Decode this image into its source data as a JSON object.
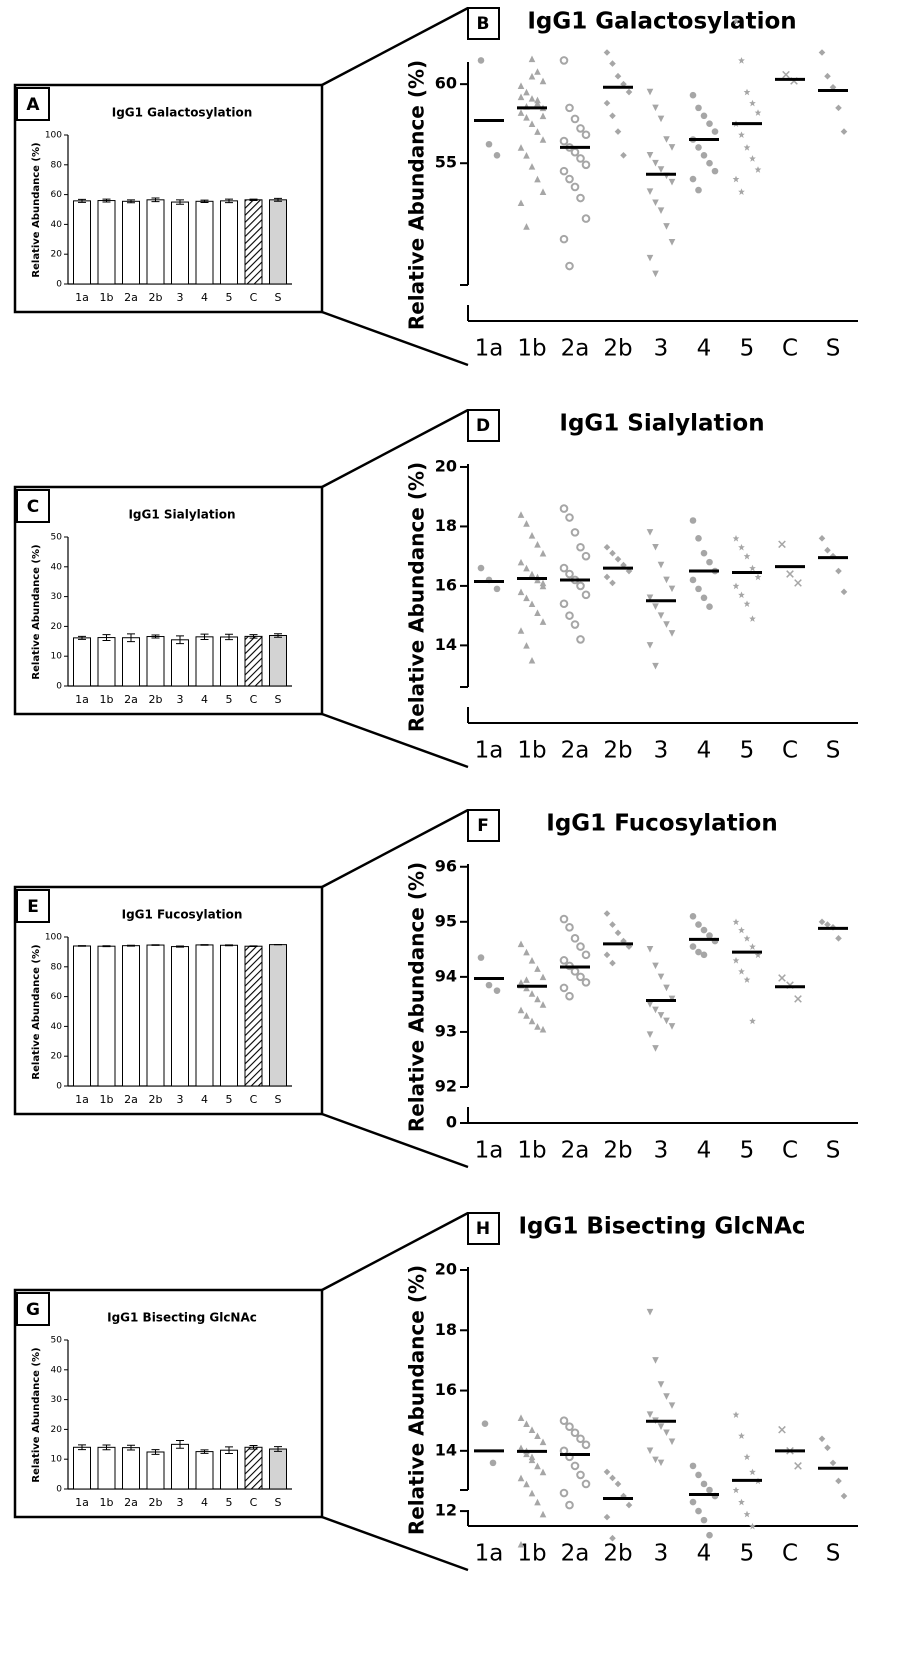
{
  "chart_data": [
    {
      "type": "bar",
      "label": "A",
      "title": "IgG1 Galactosylation",
      "y_label": "Relative Abundance (%)",
      "categories": [
        "1a",
        "1b",
        "2a",
        "2b",
        "3",
        "4",
        "5",
        "C",
        "S"
      ],
      "values": [
        55.8,
        56.0,
        55.5,
        56.5,
        55.0,
        55.5,
        55.8,
        56.5,
        56.5
      ],
      "errors": [
        1.0,
        1.0,
        1.0,
        1.2,
        1.5,
        0.8,
        1.2,
        0.5,
        1.0
      ],
      "fills": [
        "#ffffff",
        "#ffffff",
        "#ffffff",
        "#ffffff",
        "#ffffff",
        "#ffffff",
        "#ffffff",
        "hatch",
        "#d3d3d3"
      ],
      "ylim": [
        0,
        100
      ],
      "yticks": [
        0,
        20,
        40,
        60,
        80,
        100
      ]
    },
    {
      "type": "dot",
      "label": "B",
      "title": "IgG1 Galactosylation",
      "y_label": "Relative Abundance (%)",
      "categories": [
        "1a",
        "1b",
        "2a",
        "2b",
        "3",
        "4",
        "5",
        "C",
        "S"
      ],
      "markers": [
        "circle",
        "triangle",
        "circle-open",
        "diamond",
        "triangle-down",
        "circle",
        "star",
        "x",
        "diamond"
      ],
      "color": "#a6a6a6",
      "groups": [
        [
          61.5,
          56.2,
          55.5
        ],
        [
          59.2,
          58.6,
          61.6,
          60.8,
          60.2,
          59.9,
          59.5,
          59.1,
          58.8,
          58.5,
          58.2,
          57.9,
          57.5,
          57.0,
          56.5,
          56.0,
          55.5,
          54.8,
          54.0,
          53.2,
          52.5,
          51.0,
          60.5,
          59.0,
          58.0
        ],
        [
          61.5,
          58.5,
          57.8,
          57.2,
          56.8,
          56.4,
          56.0,
          55.7,
          55.3,
          54.9,
          54.5,
          54.0,
          53.5,
          52.8,
          51.5,
          50.2,
          48.5
        ],
        [
          62.0,
          61.3,
          60.5,
          60.0,
          59.5,
          58.8,
          58.0,
          57.0,
          55.5
        ],
        [
          59.5,
          58.5,
          57.8,
          56.5,
          56.0,
          55.5,
          55.0,
          54.6,
          54.2,
          53.8,
          53.2,
          52.5,
          52.0,
          51.0,
          50.0,
          49.0,
          48.0
        ],
        [
          59.3,
          58.5,
          58.0,
          57.5,
          57.0,
          56.5,
          56.0,
          55.5,
          55.0,
          54.5,
          54.0,
          53.3
        ],
        [
          64.0,
          61.5,
          59.5,
          58.8,
          58.2,
          57.5,
          56.8,
          56.0,
          55.3,
          54.6,
          54.0,
          53.2
        ],
        [
          60.6,
          60.2
        ],
        [
          62.0,
          60.5,
          59.8,
          58.5,
          57.0
        ]
      ],
      "means": [
        57.7,
        58.5,
        56.0,
        59.8,
        54.3,
        56.5,
        57.5,
        60.3,
        59.6
      ],
      "ylim": [
        47.3,
        61.4
      ],
      "yticks": [
        55,
        60
      ]
    },
    {
      "type": "bar",
      "label": "C",
      "title": "IgG1 Sialylation",
      "y_label": "Relative Abundance (%)",
      "categories": [
        "1a",
        "1b",
        "2a",
        "2b",
        "3",
        "4",
        "5",
        "C",
        "S"
      ],
      "values": [
        16.15,
        16.25,
        16.2,
        16.6,
        15.5,
        16.5,
        16.45,
        16.65,
        16.95
      ],
      "errors": [
        0.5,
        1.0,
        1.3,
        0.5,
        1.3,
        0.9,
        0.9,
        0.6,
        0.6
      ],
      "fills": [
        "#ffffff",
        "#ffffff",
        "#ffffff",
        "#ffffff",
        "#ffffff",
        "#ffffff",
        "#ffffff",
        "hatch",
        "#d3d3d3"
      ],
      "ylim": [
        0,
        50
      ],
      "yticks": [
        0,
        10,
        20,
        30,
        40,
        50
      ]
    },
    {
      "type": "dot",
      "label": "D",
      "title": "IgG1 Sialylation",
      "y_label": "Relative Abundance (%)",
      "categories": [
        "1a",
        "1b",
        "2a",
        "2b",
        "3",
        "4",
        "5",
        "C",
        "S"
      ],
      "markers": [
        "circle",
        "triangle",
        "circle-open",
        "diamond",
        "triangle-down",
        "circle",
        "star",
        "x",
        "diamond"
      ],
      "color": "#a6a6a6",
      "groups": [
        [
          16.6,
          16.2,
          15.9
        ],
        [
          18.4,
          18.1,
          17.7,
          17.4,
          17.1,
          16.8,
          16.6,
          16.4,
          16.2,
          16.0,
          15.8,
          15.6,
          15.4,
          15.1,
          14.8,
          14.5,
          14.0,
          13.5,
          16.3,
          16.1
        ],
        [
          18.6,
          18.3,
          17.8,
          17.3,
          17.0,
          16.6,
          16.4,
          16.2,
          16.0,
          15.7,
          15.4,
          15.0,
          14.7,
          14.2
        ],
        [
          17.3,
          17.1,
          16.9,
          16.7,
          16.5,
          16.3,
          16.1
        ],
        [
          17.8,
          17.3,
          16.7,
          16.2,
          15.9,
          15.6,
          15.3,
          15.0,
          14.7,
          14.4,
          14.0,
          13.3
        ],
        [
          18.2,
          17.6,
          17.1,
          16.8,
          16.5,
          16.2,
          15.9,
          15.6,
          15.3
        ],
        [
          17.6,
          17.3,
          17.0,
          16.6,
          16.3,
          16.0,
          15.7,
          15.4,
          14.9
        ],
        [
          17.4,
          16.4,
          16.1
        ],
        [
          17.6,
          17.2,
          17.0,
          16.5,
          15.8
        ]
      ],
      "means": [
        16.15,
        16.25,
        16.2,
        16.6,
        15.5,
        16.5,
        16.45,
        16.65,
        16.95
      ],
      "ylim": [
        12.6,
        20.1
      ],
      "yticks": [
        14,
        16,
        18,
        20
      ]
    },
    {
      "type": "bar",
      "label": "E",
      "title": "IgG1 Fucosylation",
      "y_label": "Relative Abundance (%)",
      "categories": [
        "1a",
        "1b",
        "2a",
        "2b",
        "3",
        "4",
        "5",
        "C",
        "S"
      ],
      "values": [
        93.97,
        93.83,
        94.18,
        94.6,
        93.57,
        94.68,
        94.45,
        93.82,
        94.88
      ],
      "errors": [
        0.2,
        0.3,
        0.3,
        0.2,
        0.4,
        0.2,
        0.3,
        0.2,
        0.1
      ],
      "fills": [
        "#ffffff",
        "#ffffff",
        "#ffffff",
        "#ffffff",
        "#ffffff",
        "#ffffff",
        "#ffffff",
        "hatch",
        "#d3d3d3"
      ],
      "ylim": [
        0,
        100
      ],
      "yticks": [
        0,
        20,
        40,
        60,
        80,
        100
      ]
    },
    {
      "type": "dot",
      "label": "F",
      "title": "IgG1 Fucosylation",
      "y_label": "Relative Abundance (%)",
      "categories": [
        "1a",
        "1b",
        "2a",
        "2b",
        "3",
        "4",
        "5",
        "C",
        "S"
      ],
      "markers": [
        "circle",
        "triangle",
        "circle-open",
        "diamond",
        "triangle-down",
        "circle",
        "star",
        "x",
        "diamond"
      ],
      "color": "#a6a6a6",
      "groups": [
        [
          94.35,
          93.85,
          93.75
        ],
        [
          94.6,
          94.45,
          94.3,
          94.15,
          94.0,
          93.9,
          93.8,
          93.7,
          93.6,
          93.5,
          93.4,
          93.3,
          93.2,
          93.1,
          93.05,
          93.85,
          93.95
        ],
        [
          95.05,
          94.9,
          94.7,
          94.55,
          94.4,
          94.3,
          94.2,
          94.1,
          94.0,
          93.9,
          93.8,
          93.65
        ],
        [
          95.15,
          94.95,
          94.8,
          94.65,
          94.55,
          94.4,
          94.25
        ],
        [
          94.5,
          94.2,
          94.0,
          93.8,
          93.6,
          93.5,
          93.4,
          93.3,
          93.2,
          93.1,
          92.95,
          92.7
        ],
        [
          95.1,
          94.95,
          94.85,
          94.75,
          94.65,
          94.55,
          94.45,
          94.4
        ],
        [
          95.0,
          94.85,
          94.7,
          94.55,
          94.4,
          94.3,
          94.1,
          93.95,
          93.2
        ],
        [
          93.98,
          93.85,
          93.6
        ],
        [
          95.0,
          94.95,
          94.9,
          94.7
        ]
      ],
      "means": [
        93.97,
        93.83,
        94.18,
        94.6,
        93.57,
        94.68,
        94.45,
        93.82,
        94.88
      ],
      "ylim": [
        92,
        96.05
      ],
      "yticks": [
        92,
        93,
        94,
        95,
        96
      ],
      "axis_break_tick": 0
    },
    {
      "type": "bar",
      "label": "G",
      "title": "IgG1 Bisecting GlcNAc",
      "y_label": "Relative Abundance (%)",
      "categories": [
        "1a",
        "1b",
        "2a",
        "2b",
        "3",
        "4",
        "5",
        "C",
        "S"
      ],
      "values": [
        14.0,
        13.98,
        13.88,
        12.42,
        14.98,
        12.55,
        13.02,
        14.0,
        13.42
      ],
      "errors": [
        0.8,
        0.8,
        0.8,
        0.8,
        1.3,
        0.6,
        1.1,
        0.6,
        0.8
      ],
      "fills": [
        "#ffffff",
        "#ffffff",
        "#ffffff",
        "#ffffff",
        "#ffffff",
        "#ffffff",
        "#ffffff",
        "hatch",
        "#d3d3d3"
      ],
      "ylim": [
        0,
        50
      ],
      "yticks": [
        0,
        10,
        20,
        30,
        40,
        50
      ]
    },
    {
      "type": "dot",
      "label": "H",
      "title": "IgG1 Bisecting GlcNAc",
      "y_label": "Relative Abundance (%)",
      "categories": [
        "1a",
        "1b",
        "2a",
        "2b",
        "3",
        "4",
        "5",
        "C",
        "S"
      ],
      "markers": [
        "circle",
        "triangle",
        "circle-open",
        "diamond",
        "triangle-down",
        "circle",
        "star",
        "x",
        "diamond"
      ],
      "color": "#a6a6a6",
      "groups": [
        [
          14.9,
          13.6
        ],
        [
          15.1,
          14.9,
          14.7,
          14.5,
          14.3,
          14.1,
          13.9,
          13.7,
          13.5,
          13.3,
          13.1,
          12.9,
          12.6,
          12.3,
          11.9,
          10.9,
          14.0,
          13.8
        ],
        [
          15.0,
          14.8,
          14.6,
          14.4,
          14.2,
          14.0,
          13.8,
          13.5,
          13.2,
          12.9,
          12.6,
          12.2
        ],
        [
          13.3,
          13.1,
          12.9,
          12.5,
          12.2,
          11.8,
          11.1
        ],
        [
          18.6,
          17.0,
          16.2,
          15.8,
          15.5,
          15.2,
          15.0,
          14.8,
          14.6,
          14.3,
          14.0,
          13.7,
          13.6
        ],
        [
          13.5,
          13.2,
          12.9,
          12.7,
          12.5,
          12.3,
          12.0,
          11.7,
          11.2
        ],
        [
          15.2,
          14.5,
          13.8,
          13.3,
          13.0,
          12.7,
          12.3,
          11.9,
          11.5
        ],
        [
          14.7,
          14.0,
          13.5
        ],
        [
          14.4,
          14.1,
          13.6,
          13.0,
          12.5
        ]
      ],
      "means": [
        14.0,
        13.98,
        13.88,
        12.42,
        14.98,
        12.55,
        13.02,
        14.0,
        13.42
      ],
      "ylim": [
        12.7,
        20.1
      ],
      "yticks": [
        12,
        14,
        16,
        18,
        20
      ]
    }
  ]
}
